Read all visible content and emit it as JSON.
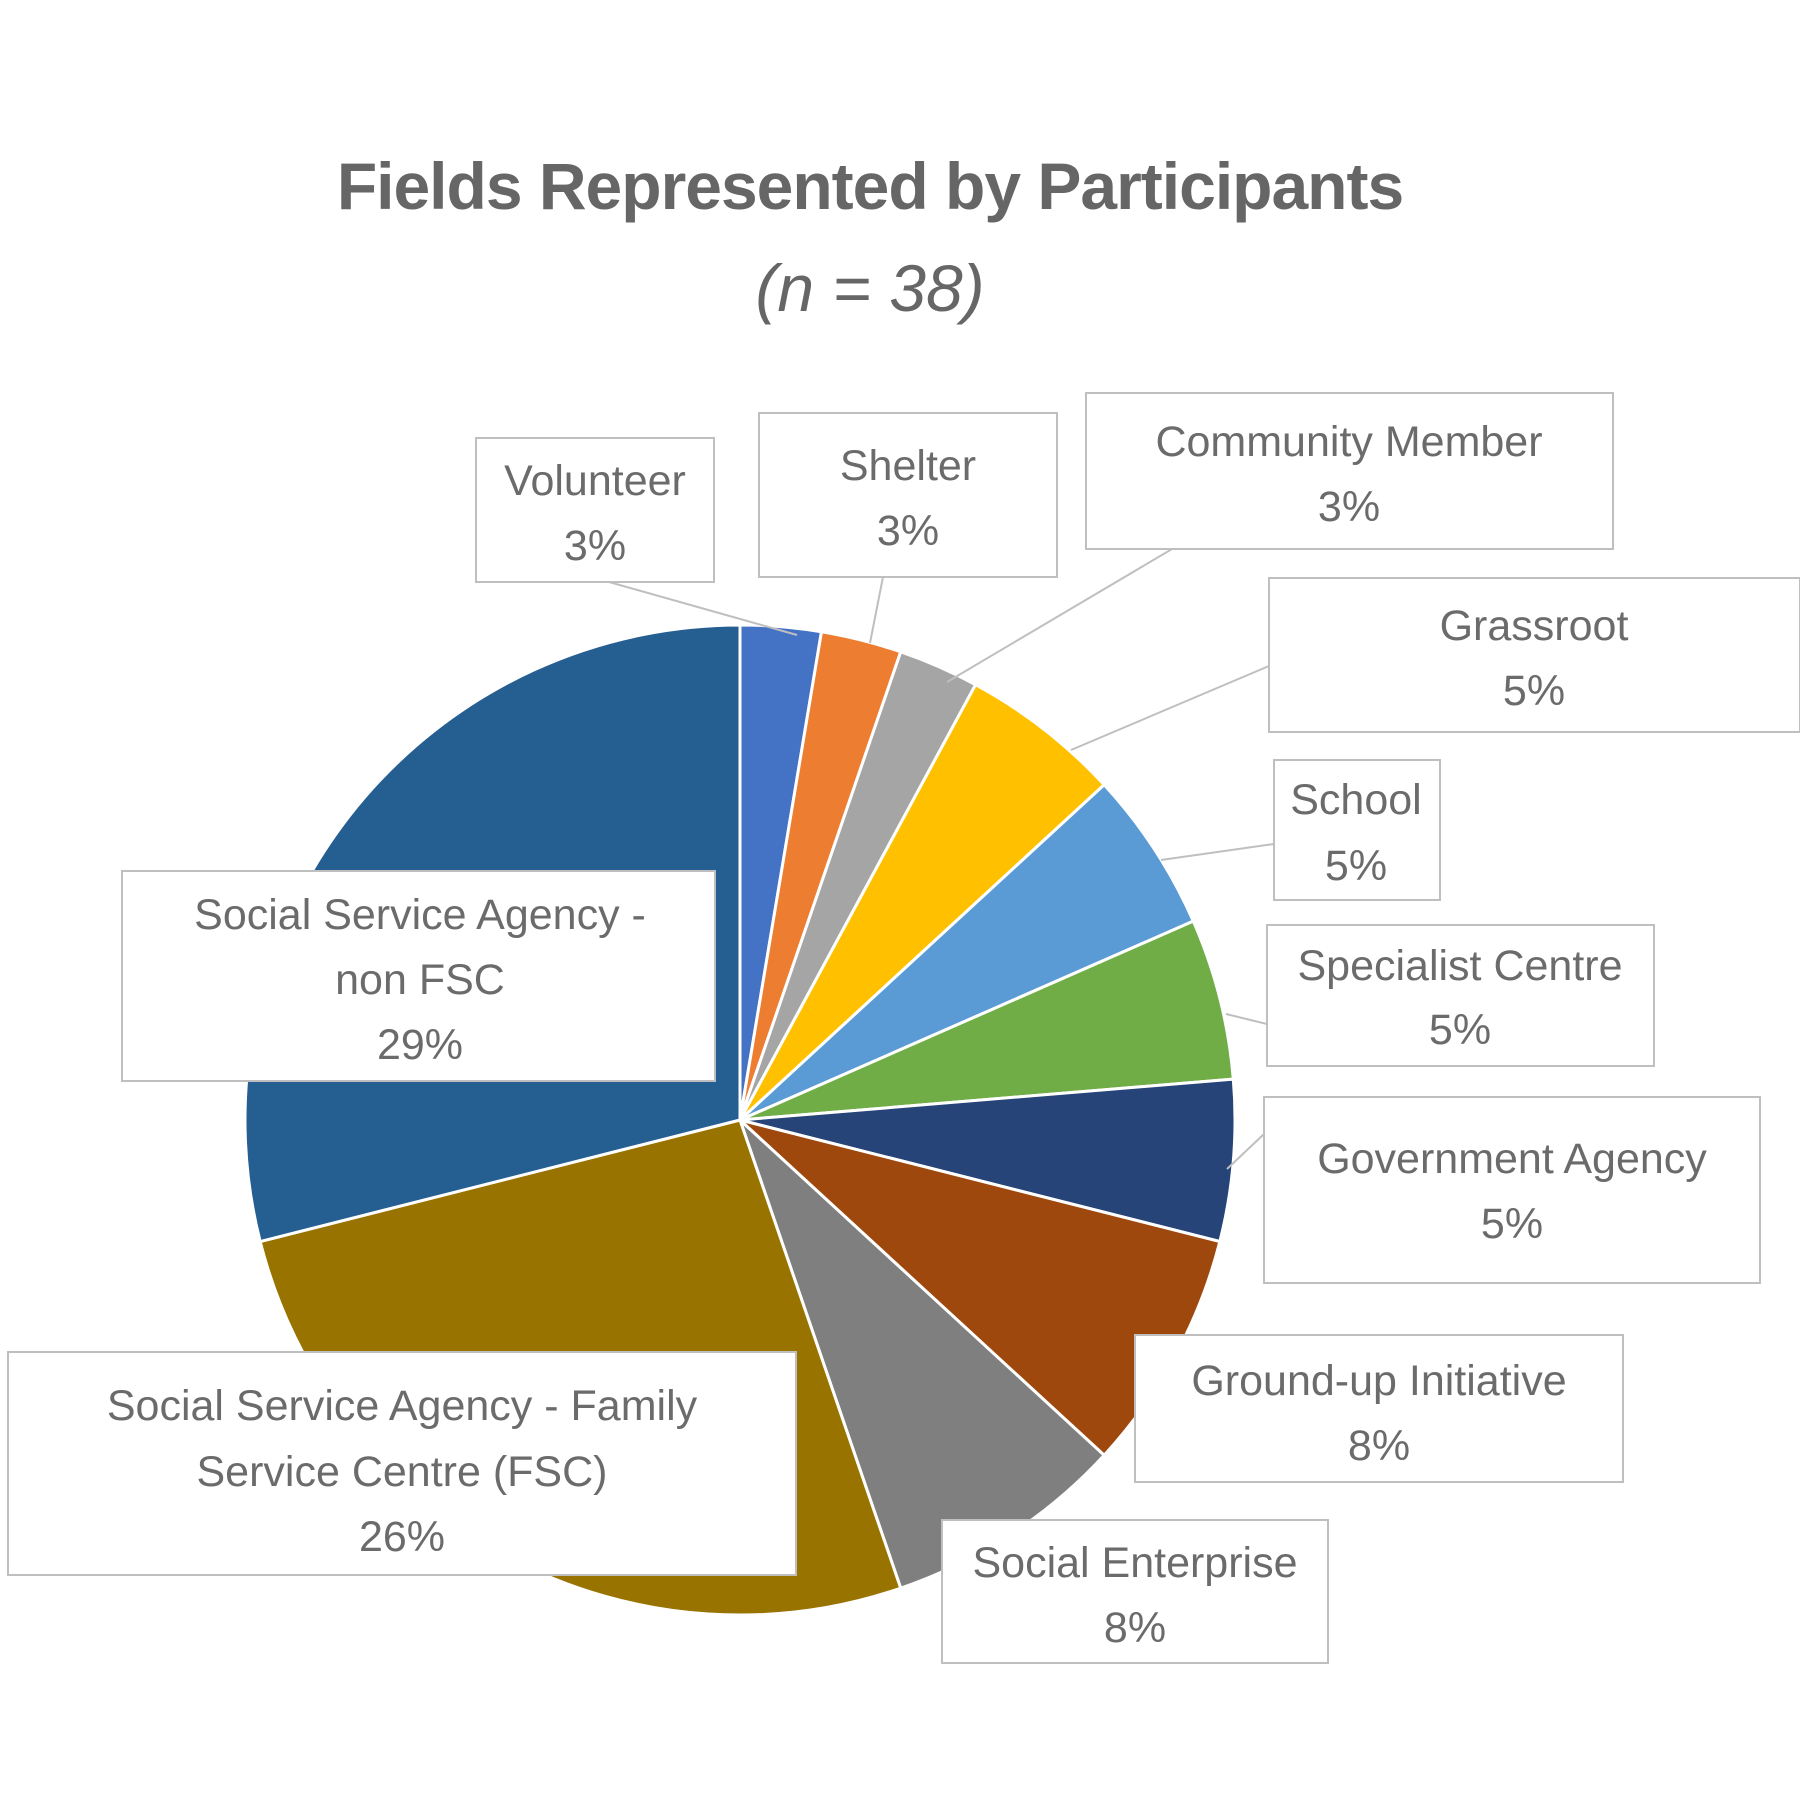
{
  "chart_data": {
    "type": "pie",
    "title": "Fields Represented by Participants",
    "subtitle": "(n = 38)",
    "slices": [
      {
        "name": "Volunteer",
        "value": 1,
        "label": "3%",
        "color": "#4472C4"
      },
      {
        "name": "Shelter",
        "value": 1,
        "label": "3%",
        "color": "#ED7D31"
      },
      {
        "name": "Community Member",
        "value": 1,
        "label": "3%",
        "color": "#A5A5A5"
      },
      {
        "name": "Grassroot",
        "value": 2,
        "label": "5%",
        "color": "#FFC000"
      },
      {
        "name": "School",
        "value": 2,
        "label": "5%",
        "color": "#5B9BD5"
      },
      {
        "name": "Specialist Centre",
        "value": 2,
        "label": "5%",
        "color": "#70AD47"
      },
      {
        "name": "Government Agency",
        "value": 2,
        "label": "5%",
        "color": "#264478"
      },
      {
        "name": "Ground-up Initiative",
        "value": 3,
        "label": "8%",
        "color": "#9E480E"
      },
      {
        "name": "Social Enterprise",
        "value": 3,
        "label": "8%",
        "color": "#7F7F7F"
      },
      {
        "name": "Social Service Agency - Family Service Centre (FSC)",
        "value": 10,
        "label": "26%",
        "color": "#997300"
      },
      {
        "name": "Social Service Agency - non FSC",
        "value": 11,
        "label": "29%",
        "color": "#255E91"
      }
    ]
  }
}
